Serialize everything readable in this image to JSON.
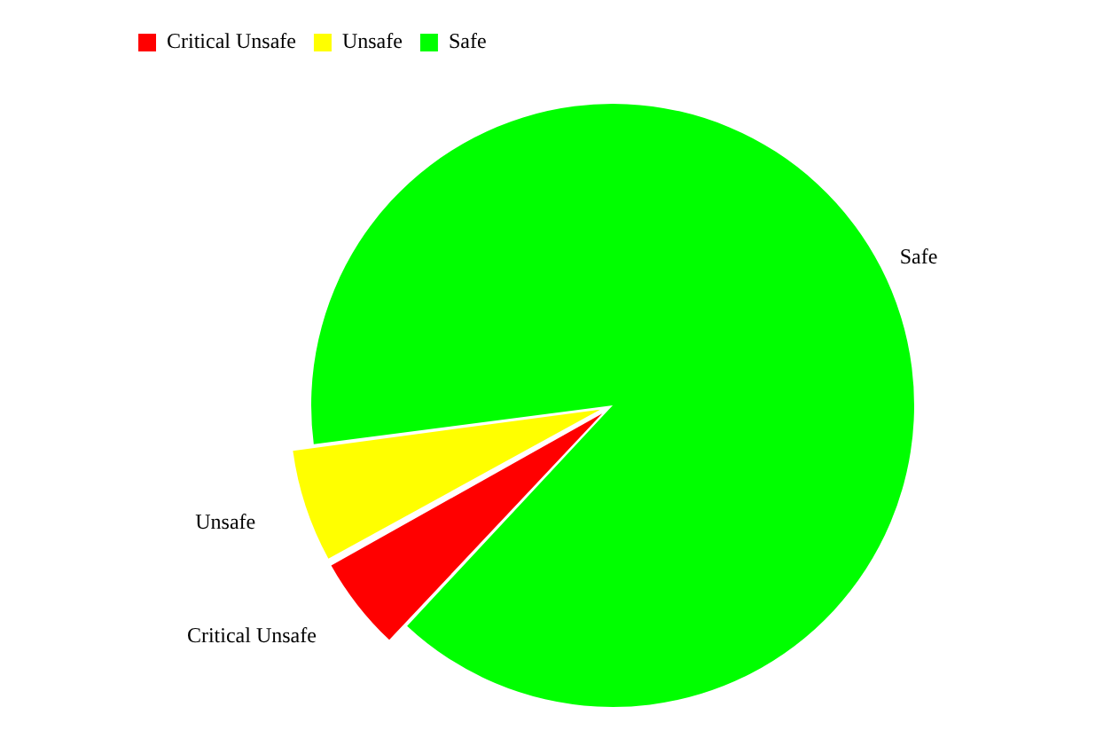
{
  "chart_data": {
    "type": "pie",
    "categories": [
      "Critical Unsafe",
      "Unsafe",
      "Safe"
    ],
    "values": [
      5,
      6,
      89
    ],
    "colors": [
      "#ff0000",
      "#ffff00",
      "#00ff00"
    ],
    "legend": "top left"
  }
}
